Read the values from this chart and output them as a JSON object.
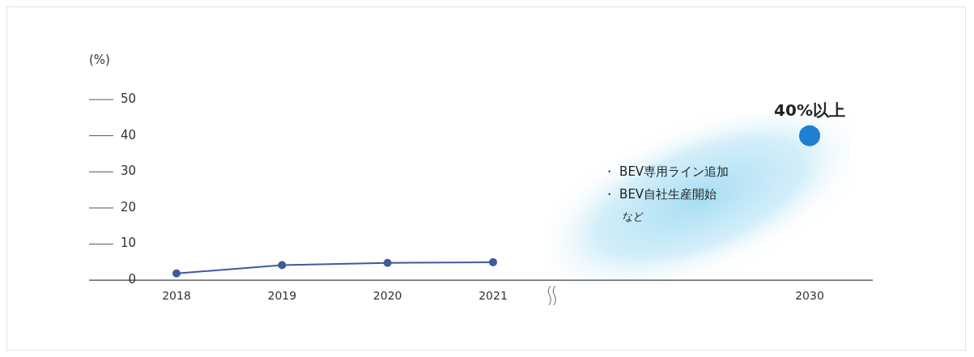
{
  "chart_data": {
    "type": "line",
    "ylabel": "(%)",
    "categories": [
      "2018",
      "2019",
      "2020",
      "2021",
      null,
      null,
      "2030"
    ],
    "ylim": [
      0,
      50
    ],
    "yticks": [
      0,
      10,
      20,
      30,
      40,
      50
    ],
    "legend": false,
    "marker": "circle",
    "series": [
      {
        "color": "#3d5c9c",
        "values": [
          1.9,
          4.2,
          4.8,
          5.0,
          null,
          null,
          null
        ]
      },
      {
        "type": "scatter",
        "color": "#1f7fd0",
        "values": [
          null,
          null,
          null,
          null,
          null,
          null,
          40
        ],
        "value_labels": [
          null,
          null,
          null,
          null,
          null,
          null,
          "40%以上"
        ]
      }
    ],
    "annotations": [
      "・ BEV専用ライン追加",
      "・ BEV自社生産開始",
      "など"
    ]
  }
}
